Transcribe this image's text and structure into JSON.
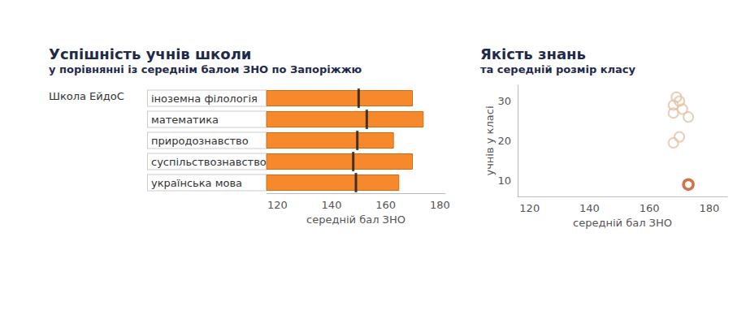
{
  "chart_data": [
    {
      "type": "bar",
      "title": "Успішність учнів школи",
      "subtitle": "у порівнянні із середнім балом ЗНО по Запоріжжю",
      "group_label": "Школа ЕйдоС",
      "orientation": "horizontal",
      "categories": [
        "іноземна філологія",
        "математика",
        "природознавство",
        "суспільствознавство",
        "українська мова"
      ],
      "values": [
        170,
        174,
        163,
        170,
        165
      ],
      "color": "#f5892c",
      "reference_values": [
        150,
        153,
        149.5,
        148,
        149
      ],
      "reference_color": "#1a1a1a",
      "xlabel": "середній бал ЗНО",
      "xlim": [
        116,
        182
      ],
      "xticks": [
        120,
        140,
        160,
        180
      ],
      "grid": false
    },
    {
      "type": "scatter",
      "title": "Якість знань",
      "subtitle": "та середній розмір класу",
      "xlabel": "середній бал ЗНО",
      "ylabel": "учнів у класі",
      "xlim": [
        116,
        186
      ],
      "xticks": [
        120,
        140,
        160,
        180
      ],
      "ylim": [
        6,
        34
      ],
      "yticks": [
        10,
        20,
        30
      ],
      "grid": false,
      "series": [
        {
          "color": "#e3c3a6",
          "marker": "open_circle",
          "x": [
            169,
            170,
            168,
            171,
            168,
            173,
            168,
            170
          ],
          "values": [
            31,
            30,
            29,
            28,
            27,
            26,
            19.5,
            21
          ]
        },
        {
          "color": "#c8501e",
          "marker": "open_circle",
          "x": [
            173
          ],
          "values": [
            9
          ]
        }
      ]
    }
  ]
}
